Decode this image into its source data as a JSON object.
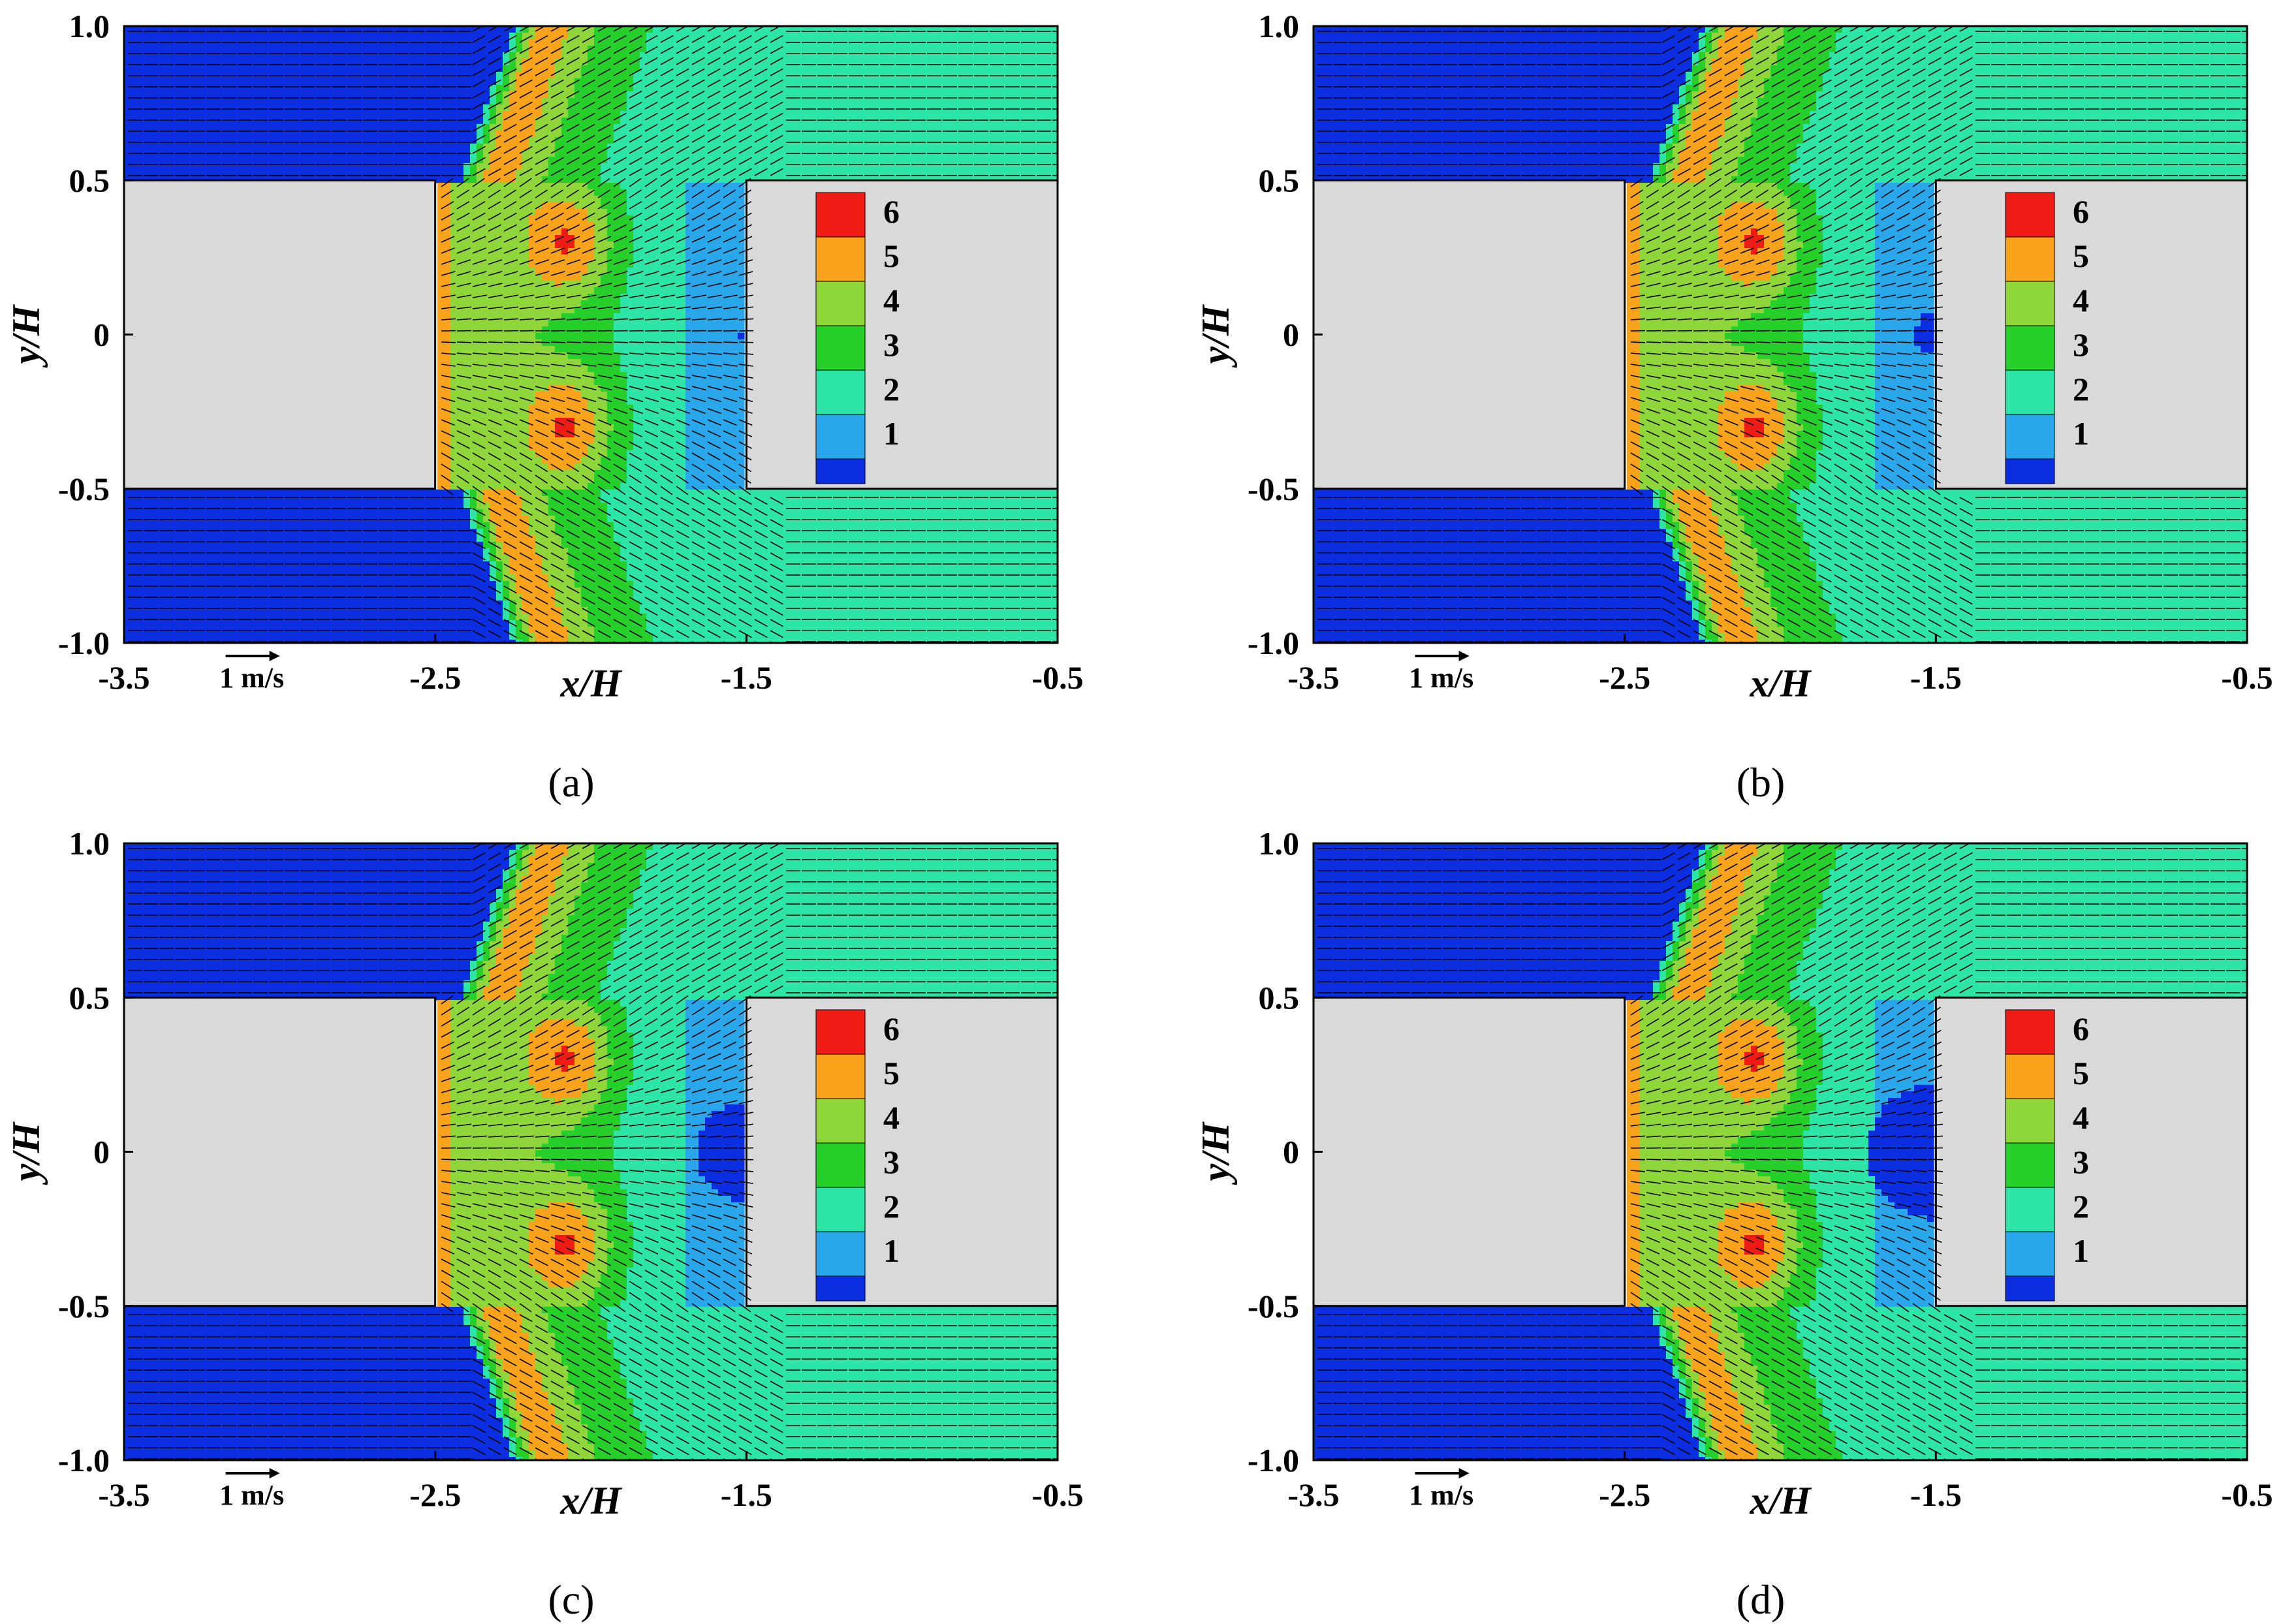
{
  "chart_data": [
    {
      "type": "heatmap",
      "panel_label": "(a)",
      "xlabel": "x/H",
      "ylabel": "y/H",
      "xlim": [
        -3.5,
        -0.5
      ],
      "ylim": [
        -1.0,
        1.0
      ],
      "x_ticks": [
        "-3.5",
        "-2.5",
        "-1.5",
        "-0.5"
      ],
      "y_ticks": [
        "1.0",
        "0.5",
        "0",
        "-0.5",
        "-1.0"
      ],
      "legend_levels": [
        "6",
        "5",
        "4",
        "3",
        "2",
        "1"
      ],
      "vector_scale_label": "1 m/s",
      "stagnation_spot_radius": 0.02
    },
    {
      "type": "heatmap",
      "panel_label": "(b)",
      "xlabel": "x/H",
      "ylabel": "y/H",
      "xlim": [
        -3.5,
        -0.5
      ],
      "ylim": [
        -1.0,
        1.0
      ],
      "x_ticks": [
        "-3.5",
        "-2.5",
        "-1.5",
        "-0.5"
      ],
      "y_ticks": [
        "1.0",
        "0.5",
        "0",
        "-0.5",
        "-1.0"
      ],
      "legend_levels": [
        "6",
        "5",
        "4",
        "3",
        "2",
        "1"
      ],
      "vector_scale_label": "1 m/s",
      "stagnation_spot_radius": 0.07
    },
    {
      "type": "heatmap",
      "panel_label": "(c)",
      "xlabel": "x/H",
      "ylabel": "y/H",
      "xlim": [
        -3.5,
        -0.5
      ],
      "ylim": [
        -1.0,
        1.0
      ],
      "x_ticks": [
        "-3.5",
        "-2.5",
        "-1.5",
        "-0.5"
      ],
      "y_ticks": [
        "1.0",
        "0.5",
        "0",
        "-0.5",
        "-1.0"
      ],
      "legend_levels": [
        "6",
        "5",
        "4",
        "3",
        "2",
        "1"
      ],
      "vector_scale_label": "1 m/s",
      "stagnation_spot_radius": 0.16
    },
    {
      "type": "heatmap",
      "panel_label": "(d)",
      "xlabel": "x/H",
      "ylabel": "y/H",
      "xlim": [
        -3.5,
        -0.5
      ],
      "ylim": [
        -1.0,
        1.0
      ],
      "x_ticks": [
        "-3.5",
        "-2.5",
        "-1.5",
        "-0.5"
      ],
      "y_ticks": [
        "1.0",
        "0.5",
        "0",
        "-0.5",
        "-1.0"
      ],
      "legend_levels": [
        "6",
        "5",
        "4",
        "3",
        "2",
        "1"
      ],
      "vector_scale_label": "1 m/s",
      "stagnation_spot_radius": 0.22
    }
  ],
  "colors": {
    "level_6": "#ee1c14",
    "level_5": "#f9a21b",
    "level_4": "#8fd63a",
    "level_3": "#27cf2a",
    "level_2": "#2ee5a8",
    "level_1": "#2aa6ea",
    "level_0": "#0b2ee0",
    "solid_wall": "#d9d9d9"
  }
}
